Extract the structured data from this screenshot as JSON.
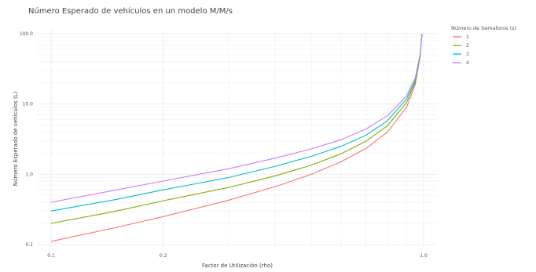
{
  "chart_data": {
    "type": "line",
    "title": "Número Esperado de vehículos en un modelo M/M/s",
    "xlabel": "Factor de Utilización (rho)",
    "ylabel": "Número Esperado de vehículos (L)",
    "x_scale": "log",
    "y_scale": "log",
    "xlim": [
      0.1,
      1.0
    ],
    "ylim": [
      0.1,
      100.0
    ],
    "x_ticks": [
      {
        "value": 0.1,
        "label": "0.1"
      },
      {
        "value": 0.2,
        "label": "0.2"
      },
      {
        "value": 1.0,
        "label": "1.0"
      }
    ],
    "y_ticks": [
      {
        "value": 0.1,
        "label": "0.1"
      },
      {
        "value": 1.0,
        "label": "1.0"
      },
      {
        "value": 10.0,
        "label": "10.0"
      },
      {
        "value": 100.0,
        "label": "100.0"
      }
    ],
    "grid": true,
    "legend": {
      "title": "Número de Semaforos (s)",
      "placement": "right"
    },
    "x": [
      0.1,
      0.15,
      0.2,
      0.3,
      0.4,
      0.5,
      0.6,
      0.7,
      0.8,
      0.9,
      0.95,
      0.98,
      0.99
    ],
    "series": [
      {
        "name": "1",
        "color": "#F8766D",
        "values": [
          0.111,
          0.176,
          0.25,
          0.429,
          0.667,
          1.0,
          1.5,
          2.33,
          4.0,
          9.0,
          19.0,
          49.0,
          99.0
        ]
      },
      {
        "name": "2",
        "color": "#7CAE00",
        "values": [
          0.2,
          0.3,
          0.42,
          0.65,
          0.95,
          1.35,
          1.95,
          2.95,
          4.9,
          10.5,
          20.5,
          50.5,
          100.0
        ]
      },
      {
        "name": "3",
        "color": "#00BFC4",
        "values": [
          0.3,
          0.44,
          0.6,
          0.9,
          1.3,
          1.8,
          2.5,
          3.6,
          5.8,
          11.8,
          22.0,
          52.0,
          100.0
        ]
      },
      {
        "name": "4",
        "color": "#C77CFF",
        "values": [
          0.4,
          0.6,
          0.8,
          1.2,
          1.7,
          2.3,
          3.1,
          4.4,
          6.8,
          13.0,
          23.5,
          53.0,
          100.0
        ]
      }
    ]
  }
}
